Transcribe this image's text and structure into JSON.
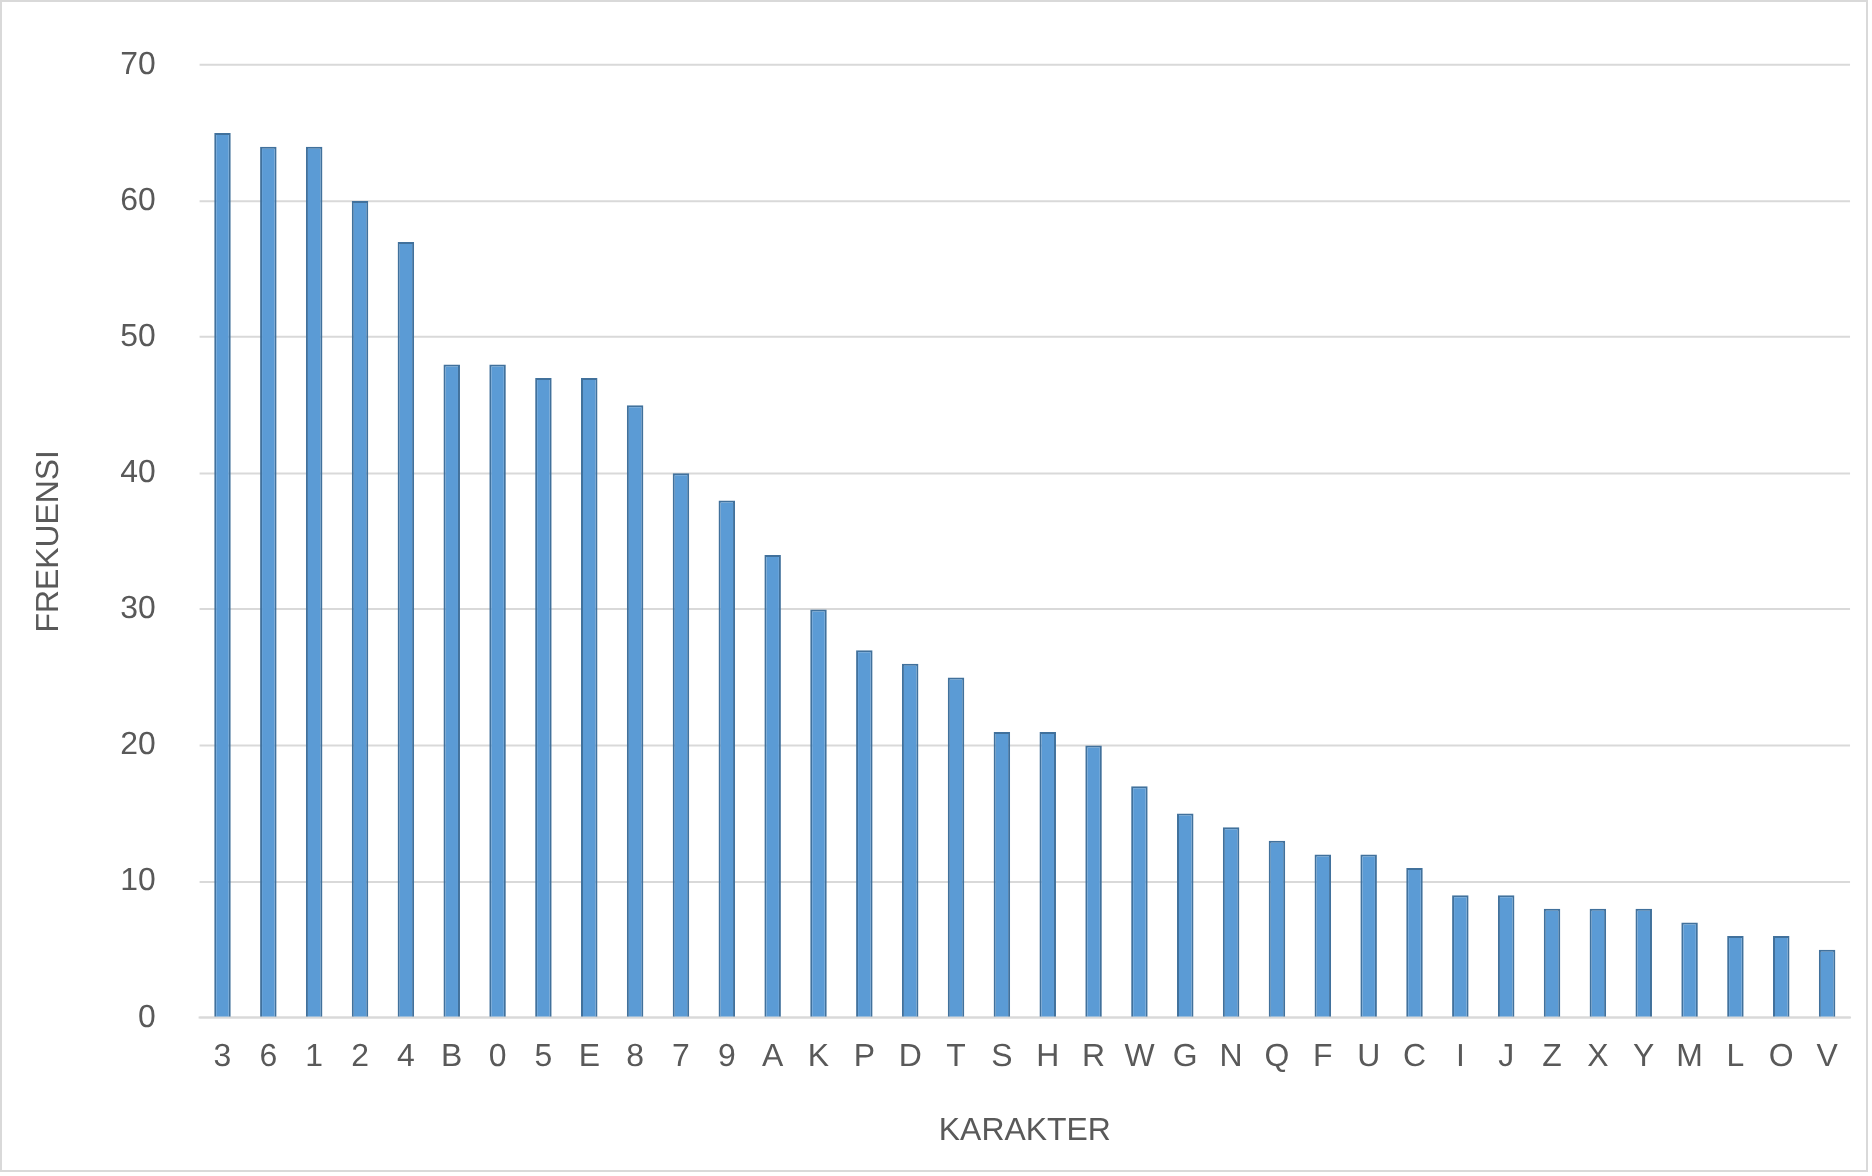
{
  "chart_data": {
    "type": "bar",
    "xlabel": "KARAKTER",
    "ylabel": "FREKUENSI",
    "categories": [
      "3",
      "6",
      "1",
      "2",
      "4",
      "B",
      "0",
      "5",
      "E",
      "8",
      "7",
      "9",
      "A",
      "K",
      "P",
      "D",
      "T",
      "S",
      "H",
      "R",
      "W",
      "G",
      "N",
      "Q",
      "F",
      "U",
      "C",
      "I",
      "J",
      "Z",
      "X",
      "Y",
      "M",
      "L",
      "O",
      "V"
    ],
    "values": [
      65,
      64,
      64,
      60,
      57,
      48,
      48,
      47,
      47,
      45,
      40,
      38,
      34,
      30,
      27,
      26,
      25,
      21,
      21,
      20,
      17,
      15,
      14,
      13,
      12,
      12,
      11,
      9,
      9,
      8,
      8,
      8,
      7,
      6,
      6,
      5
    ],
    "color": "#5b9bd5",
    "ylim": [
      0,
      70
    ],
    "yticks": [
      0,
      10,
      20,
      30,
      40,
      50,
      60,
      70
    ],
    "grid": "y",
    "legend": false
  }
}
